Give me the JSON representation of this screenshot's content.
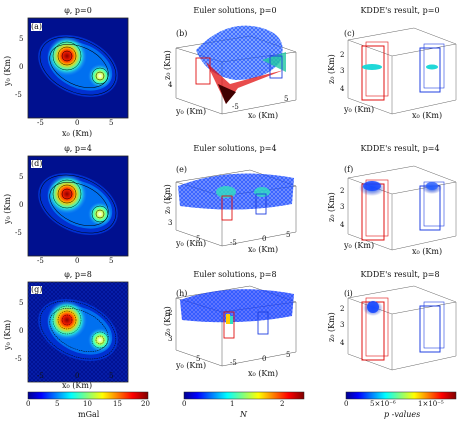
{
  "figure": {
    "col1_titles": [
      "φ, p=0",
      "φ, p=4",
      "φ, p=8"
    ],
    "col2_titles": [
      "Euler solutions, p=0",
      "Euler solutions, p=4",
      "Euler solutions, p=8"
    ],
    "col3_titles": [
      "KDDE's result, p=0",
      "KDDE's result, p=4",
      "KDDE's result, p=8"
    ],
    "panel_letters": [
      "(a)",
      "(b)",
      "(c)",
      "(d)",
      "(e)",
      "(f)",
      "(g)",
      "(h)",
      "(i)"
    ],
    "map_xlabel": "x₀ (Km)",
    "map_ylabel": "y₀ (Km)",
    "x3d_label": "x₀ (Km)",
    "y3d_label": "y₀ (Km)",
    "z3d_label": "z₀ (Km)",
    "map_xticks": [
      "-5",
      "0",
      "5"
    ],
    "map_yticks": [
      "5",
      "0",
      "-5"
    ],
    "z_ticks": [
      "2",
      "3",
      "4"
    ],
    "x3d_ticks": [
      "-5",
      "0",
      "5"
    ],
    "y3d_ticks": [
      "5",
      "0",
      "-5"
    ],
    "colorbars": [
      {
        "unit": "mGal",
        "ticks": [
          "0",
          "5",
          "10",
          "15",
          "20"
        ]
      },
      {
        "unit": "N",
        "ticks": [
          "0",
          "1",
          "2"
        ]
      },
      {
        "unit": "p -values",
        "ticks": [
          "0",
          "5×10⁻⁶",
          "1×10⁻⁵"
        ]
      }
    ],
    "colors": {
      "jet_low": "#00008f",
      "jet_mid": "#00ffff",
      "jet_high": "#800000",
      "box_red": "#e01010",
      "box_blue": "#2040e0",
      "frame": "#222222"
    }
  }
}
